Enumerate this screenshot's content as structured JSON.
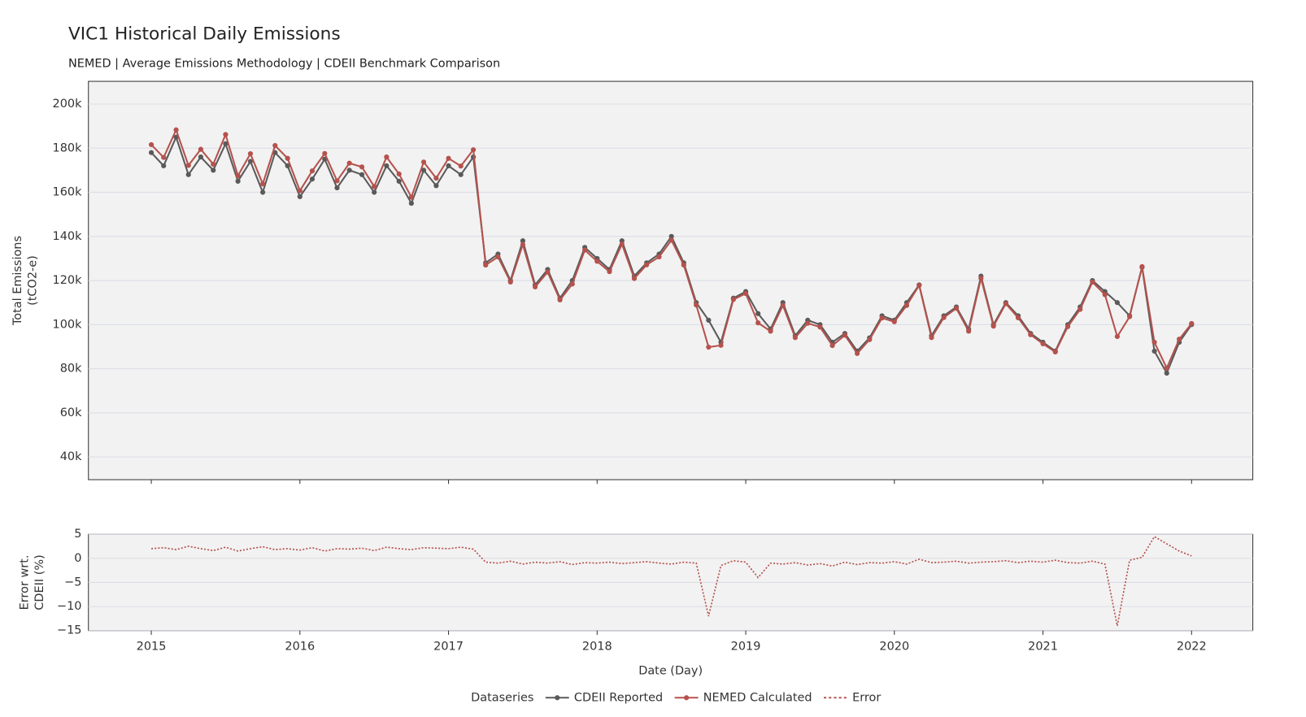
{
  "chart_data": [
    {
      "type": "line",
      "title": "VIC1 Historical Daily Emissions",
      "subtitle": "NEMED | Average Emissions Methodology | CDEII Benchmark Comparison",
      "y_label": [
        "Total Emissions",
        "(tCO2-e)"
      ],
      "legend_title": "Dataseries",
      "legend": "bottom",
      "grid": true,
      "markers": true,
      "xlim": [
        2014.577,
        2022.412
      ],
      "ylim": [
        29700,
        210300
      ],
      "yticks": [
        {
          "value": 40000,
          "label": "40k"
        },
        {
          "value": 60000,
          "label": "60k"
        },
        {
          "value": 80000,
          "label": "80k"
        },
        {
          "value": 100000,
          "label": "100k"
        },
        {
          "value": 120000,
          "label": "120k"
        },
        {
          "value": 140000,
          "label": "140k"
        },
        {
          "value": 160000,
          "label": "160k"
        },
        {
          "value": 180000,
          "label": "180k"
        },
        {
          "value": 200000,
          "label": "200k"
        }
      ],
      "x": [
        2015,
        2015.083,
        2015.167,
        2015.25,
        2015.333,
        2015.417,
        2015.5,
        2015.583,
        2015.667,
        2015.75,
        2015.833,
        2015.917,
        2016,
        2016.083,
        2016.167,
        2016.25,
        2016.333,
        2016.417,
        2016.5,
        2016.583,
        2016.667,
        2016.75,
        2016.833,
        2016.917,
        2017,
        2017.083,
        2017.167,
        2017.25,
        2017.333,
        2017.417,
        2017.5,
        2017.583,
        2017.667,
        2017.75,
        2017.833,
        2017.917,
        2018,
        2018.083,
        2018.167,
        2018.25,
        2018.333,
        2018.417,
        2018.5,
        2018.583,
        2018.667,
        2018.75,
        2018.833,
        2018.917,
        2019,
        2019.083,
        2019.167,
        2019.25,
        2019.333,
        2019.417,
        2019.5,
        2019.583,
        2019.667,
        2019.75,
        2019.833,
        2019.917,
        2020,
        2020.083,
        2020.167,
        2020.25,
        2020.333,
        2020.417,
        2020.5,
        2020.583,
        2020.667,
        2020.75,
        2020.833,
        2020.917,
        2021,
        2021.083,
        2021.167,
        2021.25,
        2021.333,
        2021.417,
        2021.5,
        2021.583,
        2021.667,
        2021.75,
        2021.833,
        2021.917,
        2022
      ],
      "series": [
        {
          "name": "CDEII Reported",
          "color": "#5a5a5a",
          "values": [
            178000,
            172000,
            185000,
            168000,
            176000,
            170000,
            182000,
            165000,
            174000,
            160000,
            178000,
            172000,
            158000,
            166000,
            175000,
            162000,
            170000,
            168000,
            160000,
            172000,
            165000,
            155000,
            170000,
            163000,
            172000,
            168000,
            176000,
            128000,
            132000,
            120000,
            138000,
            118000,
            125000,
            112000,
            120000,
            135000,
            130000,
            125000,
            138000,
            122000,
            128000,
            132000,
            140000,
            128000,
            110000,
            102000,
            92000,
            112000,
            115000,
            105000,
            98000,
            110000,
            95000,
            102000,
            100000,
            92000,
            96000,
            88000,
            94000,
            104000,
            102000,
            110000,
            118000,
            95000,
            104000,
            108000,
            98000,
            122000,
            100000,
            110000,
            104000,
            96000,
            92000,
            88000,
            100000,
            108000,
            120000,
            115000,
            110000,
            104000,
            126000,
            88000,
            78000,
            92000,
            100000
          ]
        },
        {
          "name": "NEMED Calculated",
          "color": "#b5524d",
          "values": [
            181600,
            175800,
            188300,
            172200,
            179500,
            172700,
            186200,
            167500,
            177500,
            163800,
            181200,
            175400,
            160700,
            169700,
            177600,
            165200,
            173200,
            171500,
            162600,
            176000,
            168300,
            157800,
            173700,
            166400,
            175400,
            171900,
            179300,
            127000,
            130700,
            119300,
            136300,
            117100,
            123800,
            111200,
            118400,
            133800,
            128700,
            124000,
            136500,
            120900,
            127100,
            130700,
            138300,
            127000,
            108900,
            89800,
            90600,
            111400,
            114100,
            100800,
            97000,
            108700,
            94100,
            100600,
            98900,
            90500,
            95200,
            86900,
            93200,
            103000,
            101300,
            108700,
            117800,
            94100,
            103200,
            107400,
            97000,
            121000,
            99300,
            109500,
            103100,
            95400,
            91300,
            87600,
            99100,
            106900,
            119300,
            113600,
            94600,
            103600,
            126300,
            92000,
            80300,
            93400,
            100500
          ]
        }
      ]
    },
    {
      "type": "line",
      "y_label": [
        "Error wrt.",
        "CDEII (%)"
      ],
      "x_label": "Date (Day)",
      "grid": true,
      "dashed": true,
      "xlim": [
        2014.577,
        2022.412
      ],
      "ylim": [
        -15,
        5
      ],
      "yticks": [
        5,
        0,
        {
          "value": -5,
          "label": "−5"
        },
        {
          "value": -10,
          "label": "−10"
        },
        {
          "value": -15,
          "label": "−15"
        }
      ],
      "xticks": [
        2015,
        2016,
        2017,
        2018,
        2019,
        2020,
        2021,
        2022
      ],
      "x": [
        2015,
        2015.083,
        2015.167,
        2015.25,
        2015.333,
        2015.417,
        2015.5,
        2015.583,
        2015.667,
        2015.75,
        2015.833,
        2015.917,
        2016,
        2016.083,
        2016.167,
        2016.25,
        2016.333,
        2016.417,
        2016.5,
        2016.583,
        2016.667,
        2016.75,
        2016.833,
        2016.917,
        2017,
        2017.083,
        2017.167,
        2017.25,
        2017.333,
        2017.417,
        2017.5,
        2017.583,
        2017.667,
        2017.75,
        2017.833,
        2017.917,
        2018,
        2018.083,
        2018.167,
        2018.25,
        2018.333,
        2018.417,
        2018.5,
        2018.583,
        2018.667,
        2018.75,
        2018.833,
        2018.917,
        2019,
        2019.083,
        2019.167,
        2019.25,
        2019.333,
        2019.417,
        2019.5,
        2019.583,
        2019.667,
        2019.75,
        2019.833,
        2019.917,
        2020,
        2020.083,
        2020.167,
        2020.25,
        2020.333,
        2020.417,
        2020.5,
        2020.583,
        2020.667,
        2020.75,
        2020.833,
        2020.917,
        2021,
        2021.083,
        2021.167,
        2021.25,
        2021.333,
        2021.417,
        2021.5,
        2021.583,
        2021.667,
        2021.75,
        2021.833,
        2021.917,
        2022
      ],
      "series": [
        {
          "name": "Error",
          "color": "#b5524d",
          "values": [
            2,
            2.2,
            1.8,
            2.5,
            2,
            1.6,
            2.3,
            1.5,
            2,
            2.4,
            1.8,
            2,
            1.7,
            2.2,
            1.5,
            2,
            1.9,
            2.1,
            1.6,
            2.3,
            2,
            1.8,
            2.2,
            2.1,
            2,
            2.3,
            1.9,
            -0.8,
            -1,
            -0.6,
            -1.2,
            -0.8,
            -1,
            -0.7,
            -1.3,
            -0.9,
            -1,
            -0.8,
            -1.1,
            -0.9,
            -0.7,
            -1,
            -1.2,
            -0.8,
            -1,
            -12,
            -1.5,
            -0.5,
            -0.8,
            -4,
            -1,
            -1.2,
            -0.9,
            -1.4,
            -1.1,
            -1.6,
            -0.8,
            -1.3,
            -0.9,
            -1,
            -0.7,
            -1.2,
            -0.2,
            -0.9,
            -0.8,
            -0.6,
            -1,
            -0.8,
            -0.7,
            -0.5,
            -0.9,
            -0.6,
            -0.8,
            -0.4,
            -0.9,
            -1,
            -0.6,
            -1.2,
            -14,
            -0.4,
            0.2,
            4.5,
            3,
            1.5,
            0.5
          ]
        }
      ]
    }
  ]
}
